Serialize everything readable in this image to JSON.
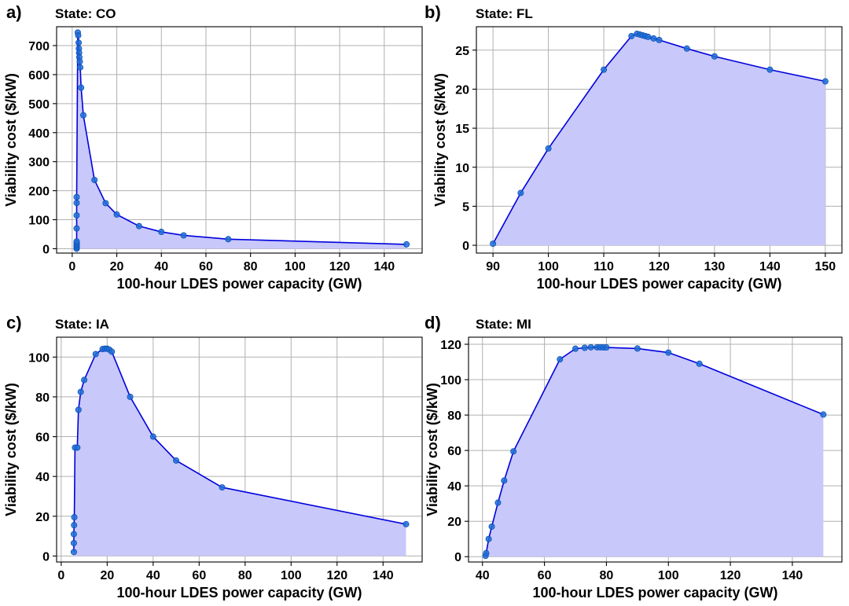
{
  "colors": {
    "line": "#0000dd",
    "fill": "#c8c8fa",
    "marker": "#1f6fd8",
    "grid": "#b0b0b0"
  },
  "chart_data": [
    {
      "type": "area",
      "panel_label": "a)",
      "title": "State: CO",
      "xlabel": "100-hour LDES power capacity (GW)",
      "ylabel": "Viability cost ($/kW)",
      "xlim": [
        -7,
        157
      ],
      "ylim": [
        -15,
        765
      ],
      "xticks": [
        0,
        20,
        40,
        60,
        80,
        100,
        120,
        140
      ],
      "yticks": [
        0,
        100,
        200,
        300,
        400,
        500,
        600,
        700
      ],
      "grid": true,
      "legend": "none",
      "x": [
        2,
        2,
        2,
        2,
        2,
        2,
        2,
        2,
        2,
        2,
        2.5,
        2.7,
        2.9,
        3,
        3.1,
        3.2,
        3.4,
        3.6,
        4,
        5,
        10,
        15,
        20,
        30,
        40,
        50,
        70,
        150
      ],
      "y": [
        0,
        5,
        10,
        15,
        20,
        25,
        70,
        115,
        158,
        178,
        745,
        735,
        710,
        690,
        675,
        660,
        645,
        625,
        555,
        460,
        237,
        157,
        118,
        78,
        58,
        46,
        33,
        15
      ]
    },
    {
      "type": "area",
      "panel_label": "b)",
      "title": "State: FL",
      "xlabel": "100-hour LDES power capacity (GW)",
      "ylabel": "Viability cost ($/kW)",
      "xlim": [
        87,
        153
      ],
      "ylim": [
        -1,
        28
      ],
      "xticks": [
        90,
        100,
        110,
        120,
        130,
        140,
        150
      ],
      "yticks": [
        0,
        5,
        10,
        15,
        20,
        25
      ],
      "grid": true,
      "legend": "none",
      "x": [
        90,
        95,
        100,
        110,
        115,
        116,
        116.5,
        117,
        117.5,
        118,
        119,
        120,
        125,
        130,
        140,
        150
      ],
      "y": [
        0.2,
        6.7,
        12.4,
        22.5,
        26.8,
        27.1,
        27.0,
        26.9,
        26.8,
        26.7,
        26.5,
        26.3,
        25.2,
        24.2,
        22.5,
        21.0
      ]
    },
    {
      "type": "area",
      "panel_label": "c)",
      "title": "State: IA",
      "xlabel": "100-hour LDES power capacity (GW)",
      "ylabel": "Viability cost ($/kW)",
      "xlim": [
        -2,
        157
      ],
      "ylim": [
        -3,
        110
      ],
      "xticks": [
        0,
        20,
        40,
        60,
        80,
        100,
        120,
        140
      ],
      "yticks": [
        0,
        20,
        40,
        60,
        80,
        100
      ],
      "grid": true,
      "legend": "none",
      "x": [
        5.5,
        5.5,
        5.5,
        5.6,
        5.7,
        6,
        7,
        7.5,
        8.5,
        10,
        15,
        18,
        19,
        20,
        21,
        22,
        30,
        40,
        50,
        70,
        150
      ],
      "y": [
        2,
        6.5,
        11,
        15.5,
        19.5,
        54.5,
        54.5,
        73.5,
        82.5,
        88.5,
        101.5,
        104,
        104.2,
        104.2,
        103.7,
        102.7,
        80,
        60,
        48,
        34.5,
        16
      ]
    },
    {
      "type": "area",
      "panel_label": "d)",
      "title": "State: MI",
      "xlabel": "100-hour LDES power capacity (GW)",
      "ylabel": "Viability cost ($/kW)",
      "xlim": [
        35.5,
        156
      ],
      "ylim": [
        -3,
        124
      ],
      "xticks": [
        40,
        60,
        80,
        100,
        120,
        140
      ],
      "yticks": [
        0,
        20,
        40,
        60,
        80,
        100,
        120
      ],
      "grid": true,
      "legend": "none",
      "x": [
        41,
        41.2,
        42,
        43,
        45,
        47,
        50,
        65,
        70,
        73,
        75,
        77,
        78,
        79,
        80,
        90,
        100,
        110,
        150
      ],
      "y": [
        0.5,
        2,
        10,
        17,
        30.5,
        43,
        59.5,
        111.5,
        117.5,
        118,
        118.3,
        118.3,
        118.3,
        118.2,
        118.2,
        117.6,
        115.3,
        109,
        80.3
      ]
    }
  ]
}
